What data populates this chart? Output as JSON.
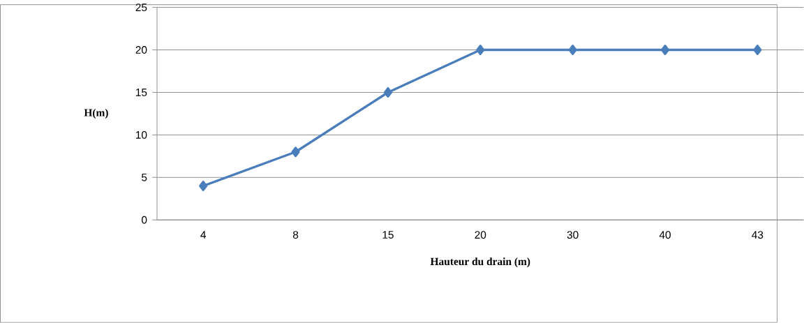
{
  "chart_data": {
    "type": "line",
    "xlabel": "Hauteur du drain (m)",
    "ylabel": "H(m)",
    "categories": [
      "4",
      "8",
      "15",
      "20",
      "30",
      "40",
      "43"
    ],
    "series": [
      {
        "color": "#4a7ebb",
        "values": [
          4,
          8,
          15,
          20,
          20,
          20,
          20
        ]
      }
    ],
    "ylim": [
      0,
      25
    ],
    "yticks": [
      0,
      5,
      10,
      15,
      20,
      25
    ],
    "grid": "y",
    "marker": "diamond",
    "line_style": "solid"
  }
}
